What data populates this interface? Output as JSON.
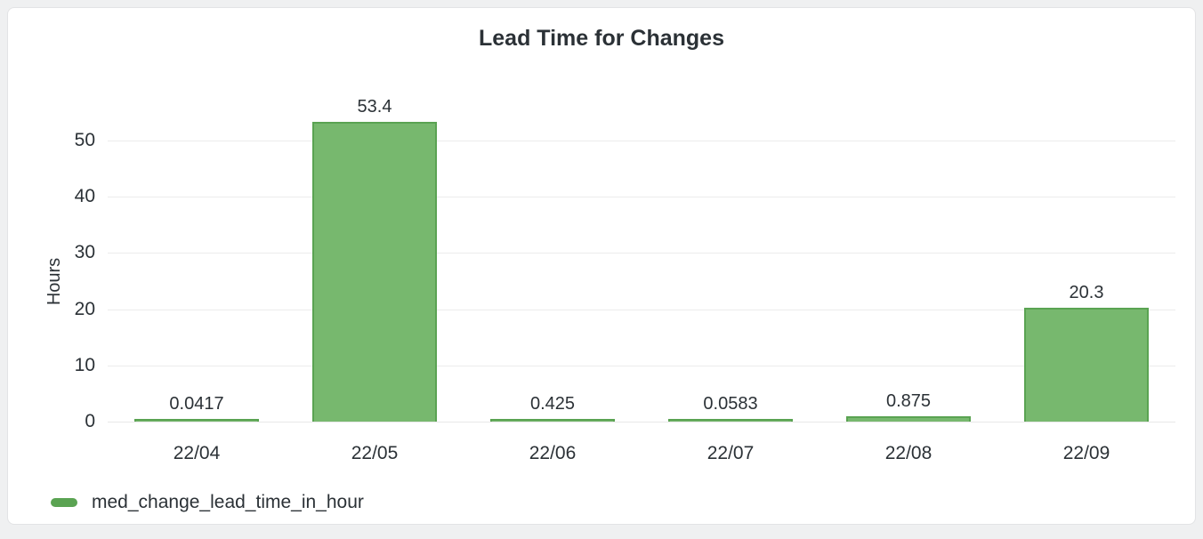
{
  "card": {
    "background": "#ffffff",
    "border_color": "#e2e3e5",
    "page_background": "#eff0f1"
  },
  "chart_data": {
    "type": "bar",
    "title": "Lead Time for Changes",
    "xlabel": "",
    "ylabel": "Hours",
    "categories": [
      "22/04",
      "22/05",
      "22/06",
      "22/07",
      "22/08",
      "22/09"
    ],
    "series": [
      {
        "name": "med_change_lead_time_in_hour",
        "values": [
          0.0417,
          53.4,
          0.425,
          0.0583,
          0.875,
          20.3
        ]
      }
    ],
    "value_labels": [
      "0.0417",
      "53.4",
      "0.425",
      "0.0583",
      "0.875",
      "20.3"
    ],
    "y_ticks": [
      0,
      10,
      20,
      30,
      40,
      50
    ],
    "ylim": [
      0,
      50
    ],
    "grid": true,
    "legend_position": "bottom-left",
    "colors": {
      "bar_fill": "#77b86e",
      "bar_border": "#5aa352",
      "legend_marker": "#5aa352",
      "grid_line": "#ececec",
      "axis_baseline": "#e8e8e8",
      "text": "#2b3136"
    }
  },
  "legend": {
    "items": [
      {
        "label": "med_change_lead_time_in_hour",
        "marker_color": "#5aa352"
      }
    ]
  }
}
